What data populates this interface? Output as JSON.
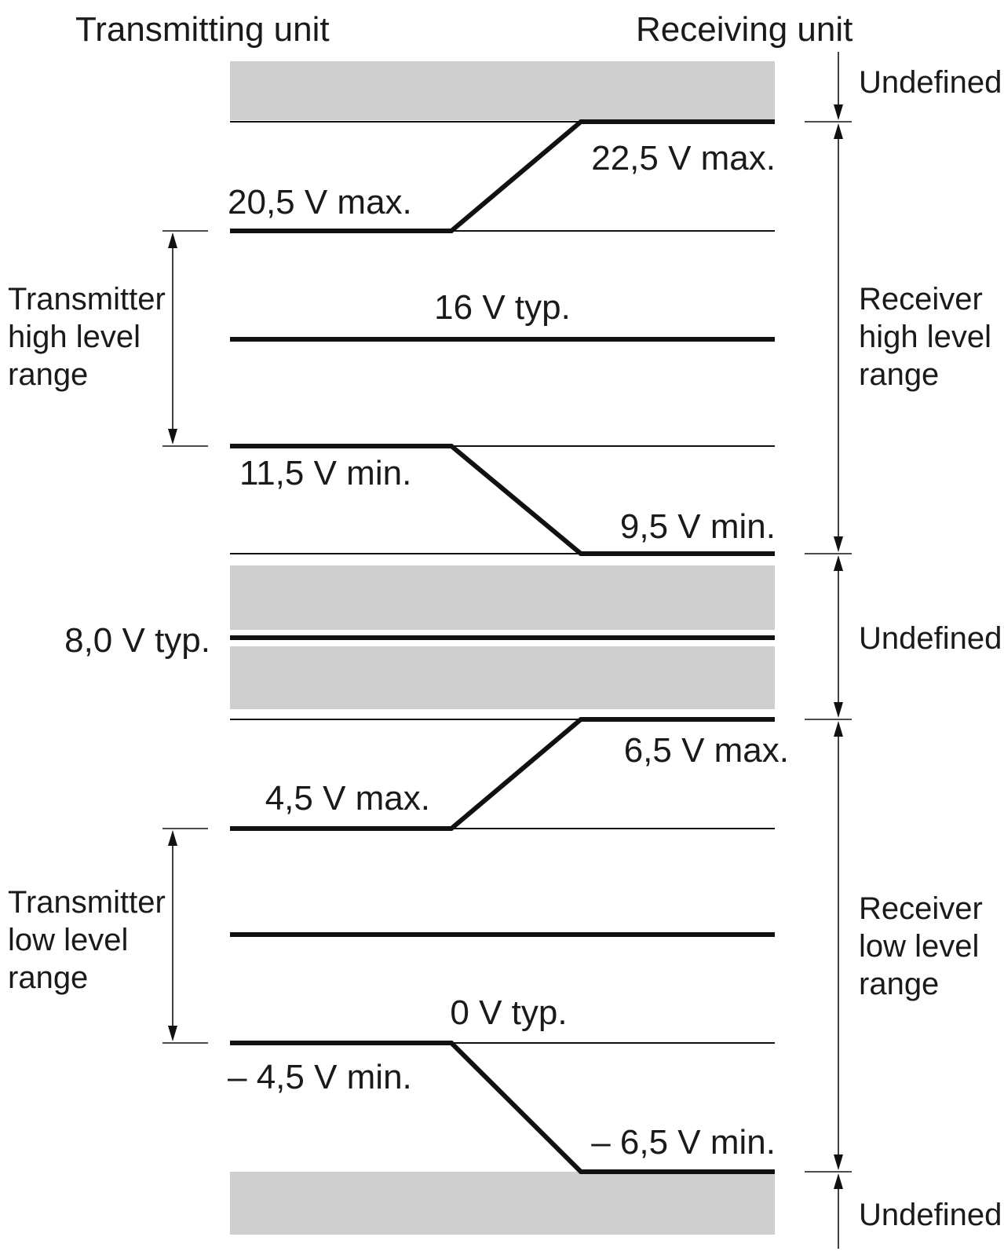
{
  "headers": {
    "transmitting": "Transmitting unit",
    "receiving": "Receiving unit"
  },
  "levels": {
    "tx_high_max": "20,5 V max.",
    "rx_high_max": "22,5 V max.",
    "high_typ": "16 V typ.",
    "tx_high_min": "11,5 V min.",
    "rx_high_min": "9,5 V min.",
    "mid_typ": "8,0 V typ.",
    "rx_low_max": "6,5 V max.",
    "tx_low_max": "4,5 V max.",
    "low_typ": "0 V typ.",
    "tx_low_min": "– 4,5 V min.",
    "rx_low_min": "– 6,5 V min."
  },
  "ranges": {
    "tx_high": [
      "Transmitter",
      "high level",
      "range"
    ],
    "tx_low": [
      "Transmitter",
      "low level",
      "range"
    ],
    "rx_high": [
      "Receiver",
      "high level",
      "range"
    ],
    "rx_low": [
      "Receiver",
      "low level",
      "range"
    ],
    "undefined_top": "Undefined",
    "undefined_mid": "Undefined",
    "undefined_bottom": "Undefined"
  },
  "colors": {
    "undefined_band": "#cfcfcf",
    "line": "#111111"
  }
}
